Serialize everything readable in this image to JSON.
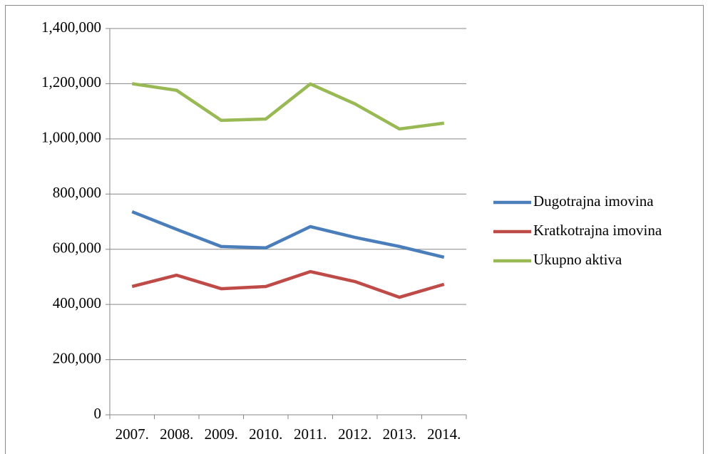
{
  "chart_data": {
    "type": "line",
    "categories": [
      "2007.",
      "2008.",
      "2009.",
      "2010.",
      "2011.",
      "2012.",
      "2013.",
      "2014."
    ],
    "series": [
      {
        "name": "Dugotrajna imovina",
        "color": "#4a7ebb",
        "values": [
          736000,
          672000,
          610000,
          605000,
          682000,
          643000,
          610000,
          571000
        ]
      },
      {
        "name": "Kratkotrajna imovina",
        "color": "#be4b48",
        "values": [
          465000,
          506000,
          457000,
          465000,
          519000,
          483000,
          426000,
          473000
        ]
      },
      {
        "name": "Ukupno aktiva",
        "color": "#98b954",
        "values": [
          1200000,
          1176000,
          1067000,
          1072000,
          1199000,
          1127000,
          1036000,
          1057000
        ]
      }
    ],
    "ylim": [
      0,
      1400000
    ],
    "yticks": [
      0,
      {
        "value": 200000,
        "label": "200,000"
      },
      {
        "value": 400000,
        "label": "400,000"
      },
      {
        "value": 600000,
        "label": "600,000"
      },
      {
        "value": 800000,
        "label": "800,000"
      },
      {
        "value": 1000000,
        "label": "1,000,000"
      },
      {
        "value": 1200000,
        "label": "1,200,000"
      },
      {
        "value": 1400000,
        "label": "1,400,000"
      }
    ],
    "grid": true,
    "legend": "right"
  }
}
